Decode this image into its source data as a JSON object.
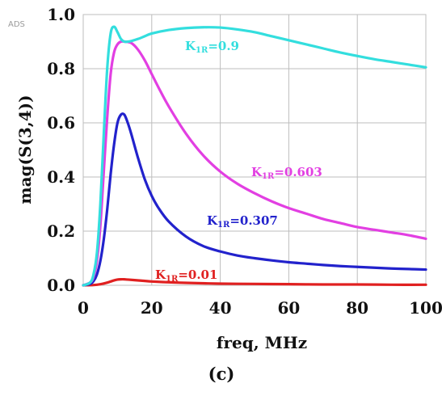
{
  "badge": "ADS",
  "caption": "(c)",
  "chart_data": {
    "type": "line",
    "xlabel": "freq, MHz",
    "ylabel": "mag(S(3,4))",
    "xlim": [
      0,
      100
    ],
    "ylim": [
      0,
      1.0
    ],
    "x_ticks": [
      "0",
      "20",
      "40",
      "60",
      "80",
      "100"
    ],
    "y_ticks": [
      "0.0",
      "0.2",
      "0.4",
      "0.6",
      "0.8",
      "1.0"
    ],
    "grid": true,
    "series": [
      {
        "name": "K1R=0.9",
        "label_main": "K",
        "label_sub": "1R",
        "label_value": "=0.9",
        "color": "#33dede",
        "x": [
          0,
          2,
          3,
          4,
          5,
          6,
          7,
          8,
          9,
          10,
          11,
          12,
          13,
          14,
          16,
          18,
          20,
          25,
          30,
          35,
          40,
          45,
          50,
          55,
          60,
          65,
          70,
          75,
          80,
          85,
          90,
          95,
          100
        ],
        "y": [
          0,
          0.01,
          0.04,
          0.12,
          0.3,
          0.56,
          0.8,
          0.93,
          0.955,
          0.935,
          0.91,
          0.9,
          0.9,
          0.902,
          0.91,
          0.92,
          0.93,
          0.943,
          0.95,
          0.953,
          0.952,
          0.945,
          0.935,
          0.92,
          0.905,
          0.89,
          0.875,
          0.86,
          0.847,
          0.835,
          0.825,
          0.815,
          0.805
        ]
      },
      {
        "name": "K1R=0.603",
        "label_main": "K",
        "label_sub": "1R",
        "label_value": "=0.603",
        "color": "#e23fe2",
        "x": [
          0,
          2,
          3,
          4,
          5,
          6,
          7,
          8,
          9,
          10,
          11,
          12,
          14,
          16,
          18,
          20,
          22,
          25,
          30,
          35,
          40,
          45,
          50,
          55,
          60,
          65,
          70,
          75,
          80,
          85,
          90,
          95,
          100
        ],
        "y": [
          0,
          0.01,
          0.03,
          0.09,
          0.22,
          0.42,
          0.62,
          0.78,
          0.86,
          0.89,
          0.9,
          0.9,
          0.895,
          0.87,
          0.83,
          0.78,
          0.73,
          0.66,
          0.56,
          0.48,
          0.42,
          0.375,
          0.34,
          0.31,
          0.285,
          0.265,
          0.245,
          0.23,
          0.215,
          0.205,
          0.195,
          0.185,
          0.172
        ]
      },
      {
        "name": "K1R=0.307",
        "label_main": "K",
        "label_sub": "1R",
        "label_value": "=0.307",
        "color": "#2222cc",
        "x": [
          0,
          2,
          3,
          4,
          5,
          6,
          7,
          8,
          9,
          10,
          11,
          12,
          13,
          14,
          16,
          18,
          20,
          22,
          25,
          30,
          35,
          40,
          45,
          50,
          55,
          60,
          65,
          70,
          75,
          80,
          85,
          90,
          95,
          100
        ],
        "y": [
          0,
          0.005,
          0.015,
          0.04,
          0.09,
          0.17,
          0.28,
          0.41,
          0.52,
          0.6,
          0.63,
          0.63,
          0.6,
          0.56,
          0.47,
          0.39,
          0.33,
          0.285,
          0.235,
          0.18,
          0.145,
          0.125,
          0.11,
          0.1,
          0.092,
          0.085,
          0.08,
          0.075,
          0.071,
          0.068,
          0.065,
          0.062,
          0.06,
          0.058
        ]
      },
      {
        "name": "K1R=0.01",
        "label_main": "K",
        "label_sub": "1R",
        "label_value": "=0.01",
        "color": "#e02020",
        "x": [
          0,
          3,
          5,
          7,
          9,
          10,
          11,
          12,
          13,
          15,
          18,
          20,
          25,
          30,
          40,
          50,
          60,
          70,
          80,
          90,
          100
        ],
        "y": [
          0,
          0.001,
          0.004,
          0.01,
          0.018,
          0.021,
          0.022,
          0.022,
          0.021,
          0.019,
          0.016,
          0.014,
          0.011,
          0.009,
          0.006,
          0.005,
          0.004,
          0.003,
          0.003,
          0.002,
          0.002
        ]
      }
    ]
  }
}
